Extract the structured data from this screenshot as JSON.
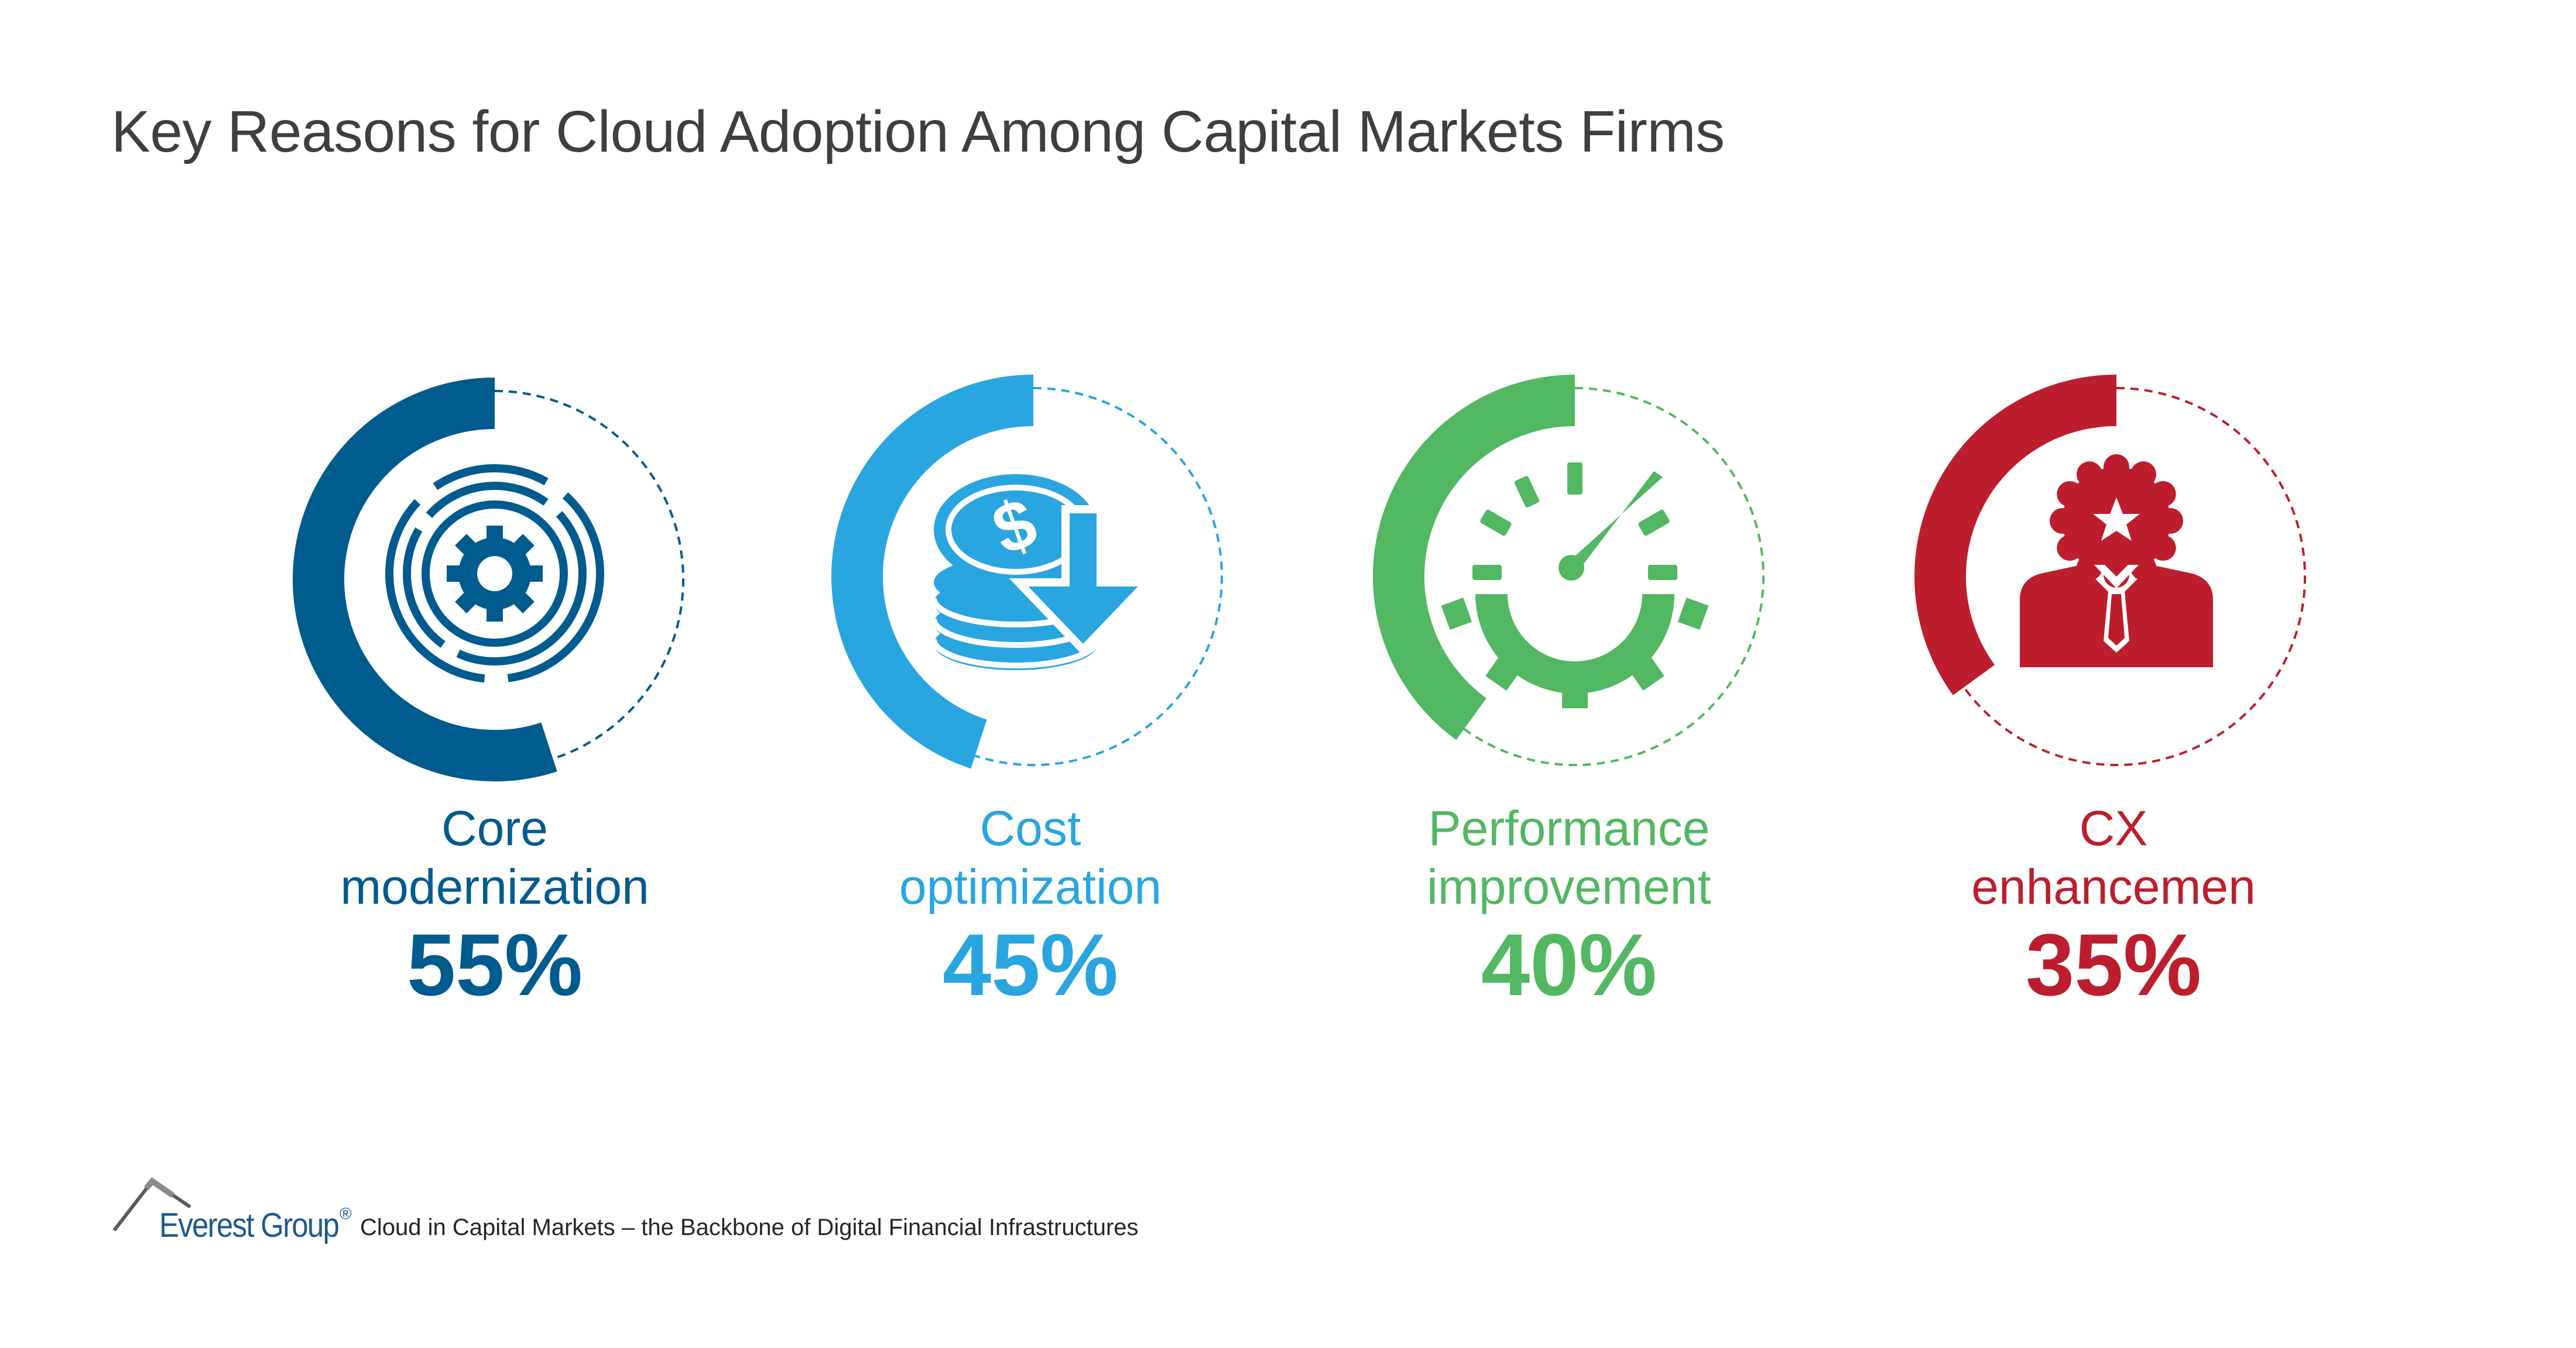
{
  "title": "Key Reasons for Cloud Adoption Among Capital Markets Firms",
  "chart_data": {
    "type": "pie",
    "title": "Key Reasons for Cloud Adoption Among Capital Markets Firms",
    "items": [
      {
        "label_line1": "Core",
        "label_line2": "modernization",
        "value": 55,
        "value_label": "55%",
        "color": "#005b8e",
        "icon": "gear-icon"
      },
      {
        "label_line1": "Cost",
        "label_line2": "optimization",
        "value": 45,
        "value_label": "45%",
        "color": "#29a6df",
        "icon": "coins-down-arrow-icon"
      },
      {
        "label_line1": "Performance",
        "label_line2": "improvement",
        "value": 40,
        "value_label": "40%",
        "color": "#52b862",
        "icon": "speedometer-gear-icon"
      },
      {
        "label_line1": "CX",
        "label_line2": "enhancemen",
        "value": 35,
        "value_label": "35%",
        "color": "#bd1e2e",
        "icon": "person-badge-icon"
      }
    ]
  },
  "footer": {
    "brand": "Everest Group",
    "registered": "®",
    "text": "Cloud in Capital Markets – the Backbone of Digital Financial Infrastructures"
  }
}
